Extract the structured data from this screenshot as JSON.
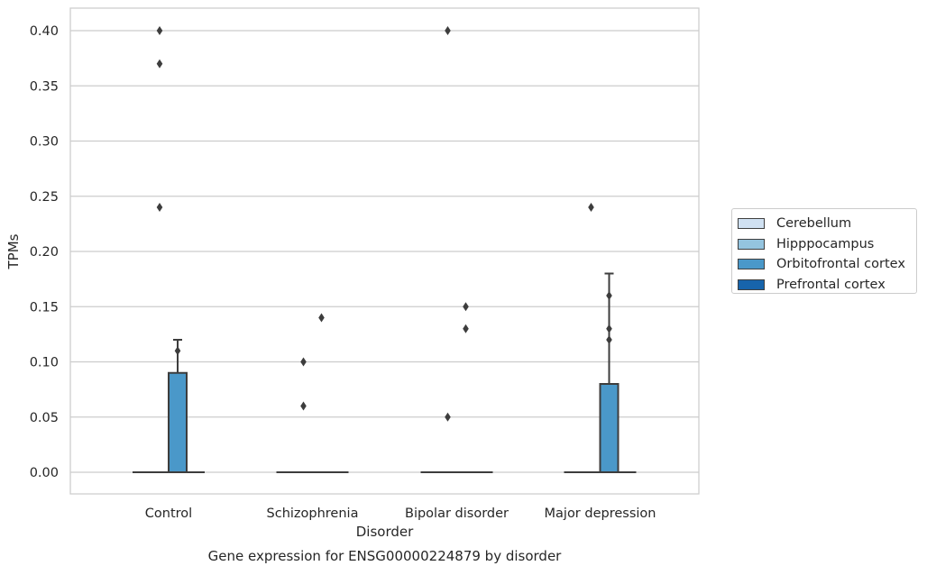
{
  "chart_data": {
    "type": "box",
    "title": "Gene expression for ENSG00000224879 by disorder",
    "xlabel": "Disorder",
    "ylabel": "TPMs",
    "categories": [
      "Control",
      "Schizophrenia",
      "Bipolar disorder",
      "Major depression"
    ],
    "ylim": [
      -0.02,
      0.42
    ],
    "yticks": [
      "0.00",
      "0.05",
      "0.10",
      "0.15",
      "0.20",
      "0.25",
      "0.30",
      "0.35",
      "0.40"
    ],
    "grid": true,
    "legend_position": "right",
    "series": [
      {
        "name": "Cerebellum",
        "color": "#d0e1f2",
        "boxes": [
          {
            "category": "Control",
            "q1": 0,
            "median": 0,
            "q3": 0,
            "whisker_low": 0,
            "whisker_high": 0,
            "outliers": []
          },
          {
            "category": "Schizophrenia",
            "q1": 0,
            "median": 0,
            "q3": 0,
            "whisker_low": 0,
            "whisker_high": 0,
            "outliers": []
          },
          {
            "category": "Bipolar disorder",
            "q1": 0,
            "median": 0,
            "q3": 0,
            "whisker_low": 0,
            "whisker_high": 0,
            "outliers": []
          },
          {
            "category": "Major depression",
            "q1": 0,
            "median": 0,
            "q3": 0,
            "whisker_low": 0,
            "whisker_high": 0,
            "outliers": []
          }
        ]
      },
      {
        "name": "Hipppocampus",
        "color": "#94c4df",
        "boxes": [
          {
            "category": "Control",
            "q1": 0,
            "median": 0,
            "q3": 0,
            "whisker_low": 0,
            "whisker_high": 0,
            "outliers": [
              0.4,
              0.37,
              0.24
            ]
          },
          {
            "category": "Schizophrenia",
            "q1": 0,
            "median": 0,
            "q3": 0,
            "whisker_low": 0,
            "whisker_high": 0,
            "outliers": [
              0.1,
              0.06
            ]
          },
          {
            "category": "Bipolar disorder",
            "q1": 0,
            "median": 0,
            "q3": 0,
            "whisker_low": 0,
            "whisker_high": 0,
            "outliers": [
              0.4,
              0.05
            ]
          },
          {
            "category": "Major depression",
            "q1": 0,
            "median": 0,
            "q3": 0,
            "whisker_low": 0,
            "whisker_high": 0,
            "outliers": [
              0.24
            ]
          }
        ]
      },
      {
        "name": "Orbitofrontal cortex",
        "color": "#4a98c9",
        "boxes": [
          {
            "category": "Control",
            "q1": 0,
            "median": 0,
            "q3": 0.09,
            "whisker_low": 0,
            "whisker_high": 0.12,
            "outliers": [
              0.11
            ]
          },
          {
            "category": "Schizophrenia",
            "q1": 0,
            "median": 0,
            "q3": 0,
            "whisker_low": 0,
            "whisker_high": 0,
            "outliers": [
              0.14
            ]
          },
          {
            "category": "Bipolar disorder",
            "q1": 0,
            "median": 0,
            "q3": 0,
            "whisker_low": 0,
            "whisker_high": 0,
            "outliers": [
              0.15,
              0.13
            ]
          },
          {
            "category": "Major depression",
            "q1": 0,
            "median": 0,
            "q3": 0.08,
            "whisker_low": 0,
            "whisker_high": 0.18,
            "outliers": [
              0.16,
              0.13,
              0.12
            ]
          }
        ]
      },
      {
        "name": "Prefrontal cortex",
        "color": "#1764ab",
        "boxes": [
          {
            "category": "Control",
            "q1": 0,
            "median": 0,
            "q3": 0,
            "whisker_low": 0,
            "whisker_high": 0,
            "outliers": []
          },
          {
            "category": "Schizophrenia",
            "q1": 0,
            "median": 0,
            "q3": 0,
            "whisker_low": 0,
            "whisker_high": 0,
            "outliers": []
          },
          {
            "category": "Bipolar disorder",
            "q1": 0,
            "median": 0,
            "q3": 0,
            "whisker_low": 0,
            "whisker_high": 0,
            "outliers": []
          },
          {
            "category": "Major depression",
            "q1": 0,
            "median": 0,
            "q3": 0,
            "whisker_low": 0,
            "whisker_high": 0,
            "outliers": []
          }
        ]
      }
    ]
  }
}
